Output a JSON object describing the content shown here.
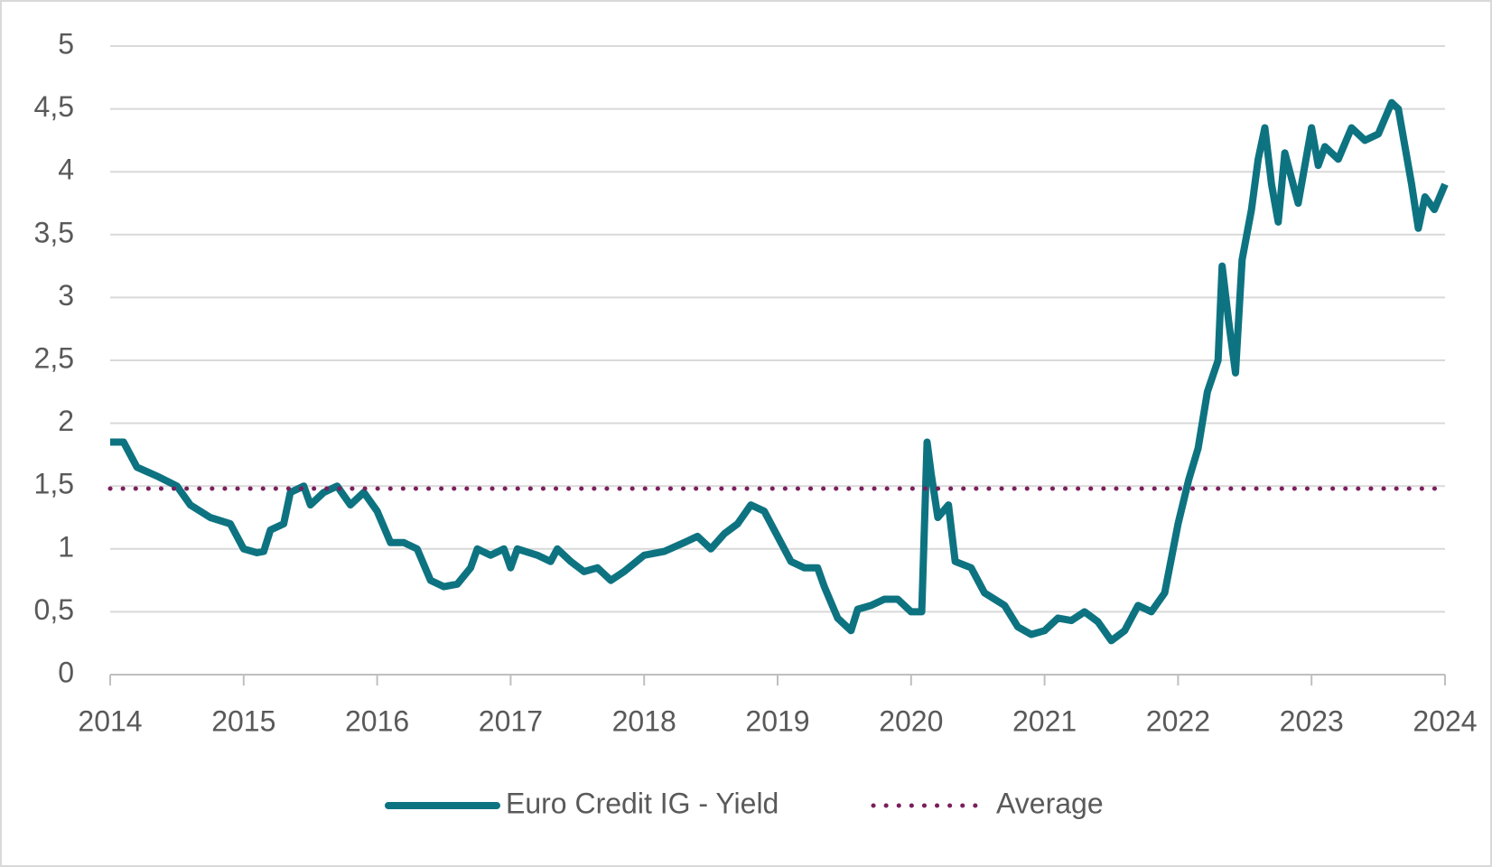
{
  "chart_data": {
    "type": "line",
    "xlim": [
      2014,
      2024
    ],
    "xticks": [
      2014,
      2015,
      2016,
      2017,
      2018,
      2019,
      2020,
      2021,
      2022,
      2023,
      2024
    ],
    "ylim": [
      0,
      5
    ],
    "yticks": [
      0,
      {
        "value": 0.5,
        "label": "0,5"
      },
      1,
      {
        "value": 1.5,
        "label": "1,5"
      },
      2,
      {
        "value": 2.5,
        "label": "2,5"
      },
      3,
      {
        "value": 3.5,
        "label": "3,5"
      },
      4,
      {
        "value": 4.5,
        "label": "4,5"
      },
      5
    ],
    "grid": true,
    "legend": "bottom",
    "series": [
      {
        "name": "Euro Credit IG - Yield",
        "color": "#0e7381",
        "style": "solid",
        "x": [
          2014.0,
          2014.1,
          2014.2,
          2014.35,
          2014.5,
          2014.6,
          2014.75,
          2014.9,
          2015.0,
          2015.1,
          2015.15,
          2015.2,
          2015.3,
          2015.35,
          2015.45,
          2015.5,
          2015.6,
          2015.7,
          2015.8,
          2015.9,
          2016.0,
          2016.1,
          2016.2,
          2016.3,
          2016.4,
          2016.5,
          2016.6,
          2016.7,
          2016.75,
          2016.85,
          2016.95,
          2017.0,
          2017.05,
          2017.2,
          2017.3,
          2017.35,
          2017.45,
          2017.55,
          2017.65,
          2017.75,
          2017.85,
          2018.0,
          2018.15,
          2018.3,
          2018.4,
          2018.5,
          2018.6,
          2018.7,
          2018.8,
          2018.9,
          2019.0,
          2019.1,
          2019.2,
          2019.3,
          2019.35,
          2019.45,
          2019.55,
          2019.6,
          2019.7,
          2019.8,
          2019.9,
          2020.0,
          2020.08,
          2020.12,
          2020.15,
          2020.2,
          2020.28,
          2020.33,
          2020.45,
          2020.55,
          2020.7,
          2020.8,
          2020.9,
          2021.0,
          2021.1,
          2021.2,
          2021.3,
          2021.4,
          2021.5,
          2021.6,
          2021.7,
          2021.8,
          2021.9,
          2022.0,
          2022.08,
          2022.15,
          2022.22,
          2022.3,
          2022.33,
          2022.38,
          2022.43,
          2022.48,
          2022.55,
          2022.6,
          2022.65,
          2022.7,
          2022.75,
          2022.8,
          2022.9,
          2023.0,
          2023.05,
          2023.1,
          2023.2,
          2023.3,
          2023.4,
          2023.5,
          2023.6,
          2023.65,
          2023.75,
          2023.8,
          2023.85,
          2023.92,
          2024.0
        ],
        "values": [
          1.85,
          1.85,
          1.65,
          1.58,
          1.5,
          1.35,
          1.25,
          1.2,
          1.0,
          0.97,
          0.98,
          1.15,
          1.2,
          1.45,
          1.5,
          1.35,
          1.45,
          1.5,
          1.35,
          1.45,
          1.3,
          1.05,
          1.05,
          1.0,
          0.75,
          0.7,
          0.72,
          0.85,
          1.0,
          0.95,
          1.0,
          0.85,
          1.0,
          0.95,
          0.9,
          1.0,
          0.9,
          0.82,
          0.85,
          0.75,
          0.82,
          0.95,
          0.98,
          1.05,
          1.1,
          1.0,
          1.12,
          1.2,
          1.35,
          1.3,
          1.1,
          0.9,
          0.85,
          0.85,
          0.7,
          0.45,
          0.35,
          0.52,
          0.55,
          0.6,
          0.6,
          0.5,
          0.5,
          1.85,
          1.6,
          1.25,
          1.35,
          0.9,
          0.85,
          0.65,
          0.55,
          0.38,
          0.32,
          0.35,
          0.45,
          0.43,
          0.5,
          0.42,
          0.27,
          0.35,
          0.55,
          0.5,
          0.65,
          1.2,
          1.55,
          1.8,
          2.25,
          2.5,
          3.25,
          2.8,
          2.4,
          3.3,
          3.7,
          4.1,
          4.35,
          3.9,
          3.6,
          4.15,
          3.75,
          4.35,
          4.05,
          4.2,
          4.1,
          4.35,
          4.25,
          4.3,
          4.55,
          4.5,
          3.9,
          3.55,
          3.8,
          3.7,
          3.9
        ]
      },
      {
        "name": "Average",
        "color": "#7a1f5c",
        "style": "dotted",
        "x": [
          2014,
          2024
        ],
        "values": [
          1.48,
          1.48
        ]
      }
    ]
  }
}
